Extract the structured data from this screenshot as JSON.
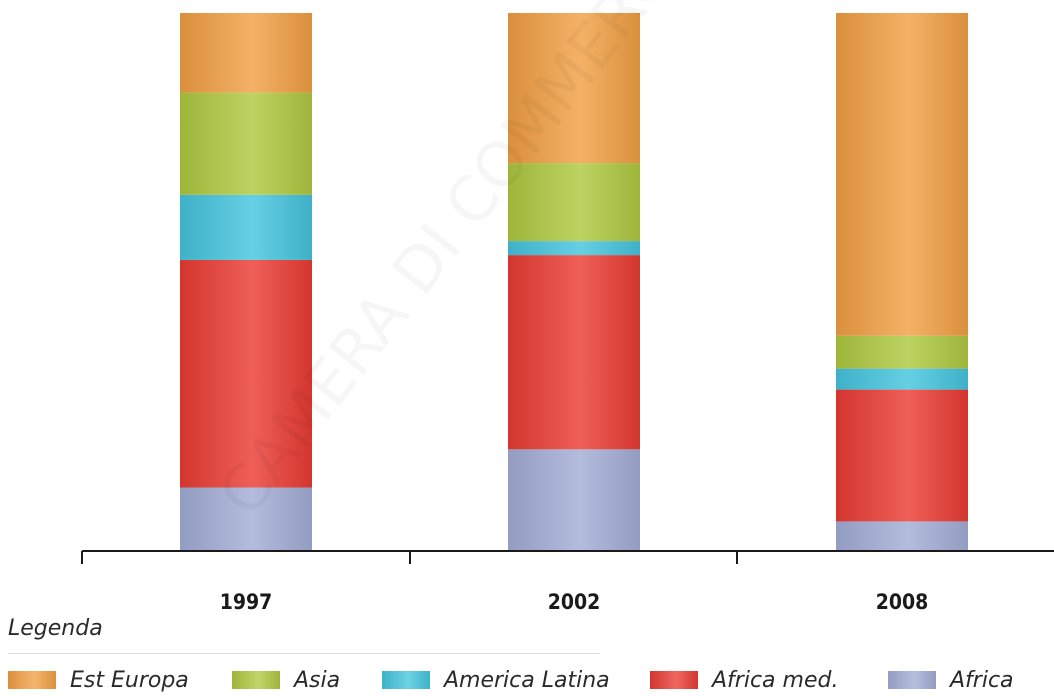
{
  "chart_data": {
    "type": "bar",
    "stacked": true,
    "normalized": true,
    "categories": [
      "1997",
      "2002",
      "2008"
    ],
    "series": [
      {
        "name": "Africa",
        "color": "#a3add6",
        "values": [
          0.118,
          0.189,
          0.055
        ]
      },
      {
        "name": "Africa med.",
        "color": "#ea3c33",
        "values": [
          0.423,
          0.361,
          0.245
        ]
      },
      {
        "name": "America Latina",
        "color": "#45c5de",
        "values": [
          0.121,
          0.026,
          0.039
        ]
      },
      {
        "name": "Asia",
        "color": "#afc940",
        "values": [
          0.19,
          0.145,
          0.061
        ]
      },
      {
        "name": "Est Europa",
        "color": "#f2a044",
        "values": [
          0.148,
          0.279,
          0.6
        ]
      }
    ],
    "title": "",
    "xlabel": "",
    "ylabel": "",
    "ylim": [
      0,
      1
    ],
    "grid": false,
    "legend_position": "bottom",
    "watermark": "CAMERA DI COMMERCIO"
  },
  "legend": {
    "title": "Legenda",
    "items": [
      {
        "label": "Est Europa",
        "color": "#f2a044"
      },
      {
        "label": "Asia",
        "color": "#afc940"
      },
      {
        "label": "America Latina",
        "color": "#45c5de"
      },
      {
        "label": "Africa med.",
        "color": "#ea3c33"
      },
      {
        "label": "Africa",
        "color": "#a3add6"
      }
    ]
  }
}
